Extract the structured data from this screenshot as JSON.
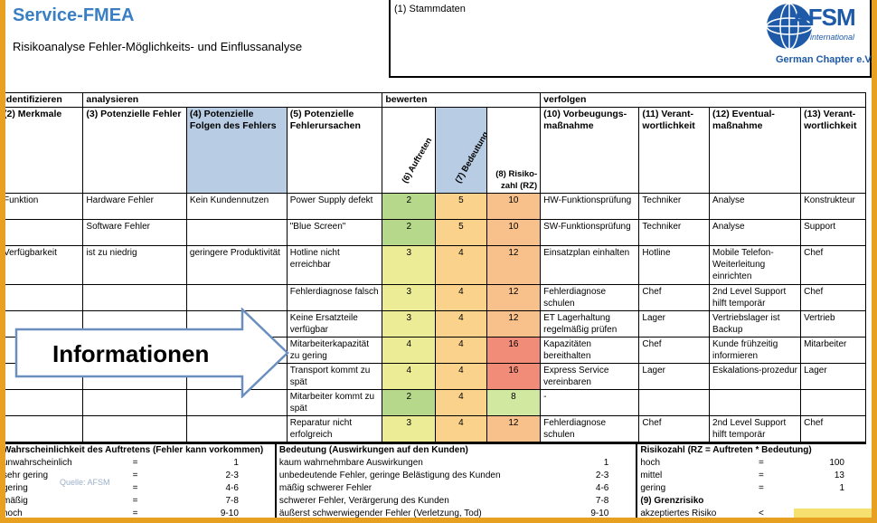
{
  "title": "Service-FMEA",
  "subtitle": "Risikoanalyse Fehler-Möglichkeits- und Einflussanalyse",
  "stammdaten_label": "(1) Stammdaten",
  "logo": {
    "main": "AFSM",
    "sub": "international",
    "chapter": "German Chapter e.V."
  },
  "phases": [
    "identifizieren",
    "analysieren",
    "bewerten",
    "verfolgen"
  ],
  "headers": {
    "merkmale": "(2) Merkmale",
    "fehler": "(3) Potenzielle Fehler",
    "folgen": "(4) Potenzielle Folgen des Fehlers",
    "ursachen": "(5) Potenzielle Fehlerursachen",
    "auftreten": "(6) Auftreten",
    "bedeutung": "(7) Bedeutung",
    "rz": "(8) Risiko-zahl (RZ)",
    "vorbeugung": "(10) Vorbeugungs-maßnahme",
    "verant1": "(11) Verant-wortlichkeit",
    "eventual": "(12) Eventual-maßnahme",
    "verant2": "(13) Verant-wortlichkeit"
  },
  "rows": [
    {
      "merkmal": "Funktion",
      "fehler": "Hardware Fehler",
      "folge": "Kein Kundennutzen",
      "ursache": "Power Supply defekt",
      "a": "2",
      "b": "5",
      "rz": "10",
      "vorb": "HW-Funktionsprüfung",
      "v1": "Techniker",
      "ev": "Analyse",
      "v2": "Konstrukteur"
    },
    {
      "merkmal": "",
      "fehler": "Software Fehler",
      "folge": "",
      "ursache": "\"Blue Screen\"",
      "a": "2",
      "b": "5",
      "rz": "10",
      "vorb": "SW-Funktionsprüfung",
      "v1": "Techniker",
      "ev": "Analyse",
      "v2": "Support"
    },
    {
      "merkmal": "Verfügbarkeit",
      "fehler": "ist zu niedrig",
      "folge": "geringere Produktivität",
      "ursache": "Hotline nicht erreichbar",
      "a": "3",
      "b": "4",
      "rz": "12",
      "vorb": "Einsatzplan einhalten",
      "v1": "Hotline",
      "ev": "Mobile Telefon-Weiterleitung einrichten",
      "v2": "Chef"
    },
    {
      "merkmal": "",
      "fehler": "",
      "folge": "",
      "ursache": "Fehlerdiagnose falsch",
      "a": "3",
      "b": "4",
      "rz": "12",
      "vorb": "Fehlerdiagnose schulen",
      "v1": "Chef",
      "ev": "2nd Level Support hilft temporär",
      "v2": "Chef"
    },
    {
      "merkmal": "",
      "fehler": "",
      "folge": "",
      "ursache": "Keine Ersatzteile verfügbar",
      "a": "3",
      "b": "4",
      "rz": "12",
      "vorb": "ET Lagerhaltung regelmäßig prüfen",
      "v1": "Lager",
      "ev": "Vertriebslager ist Backup",
      "v2": "Vertrieb"
    },
    {
      "merkmal": "",
      "fehler": "",
      "folge": "",
      "ursache": "Mitarbeiterkapazität zu gering",
      "a": "4",
      "b": "4",
      "rz": "16",
      "vorb": "Kapazitäten bereithalten",
      "v1": "Chef",
      "ev": "Kunde frühzeitig informieren",
      "v2": "Mitarbeiter"
    },
    {
      "merkmal": "",
      "fehler": "",
      "folge": "",
      "ursache": "Transport kommt zu spät",
      "a": "4",
      "b": "4",
      "rz": "16",
      "vorb": "Express Service vereinbaren",
      "v1": "Lager",
      "ev": "Eskalations-prozedur",
      "v2": "Lager"
    },
    {
      "merkmal": "",
      "fehler": "",
      "folge": "",
      "ursache": "Mitarbeiter kommt zu spät",
      "a": "2",
      "b": "4",
      "rz": "8",
      "vorb": "-",
      "v1": "",
      "ev": "",
      "v2": ""
    },
    {
      "merkmal": "",
      "fehler": "",
      "folge": "",
      "ursache": "Reparatur nicht erfolgreich",
      "a": "3",
      "b": "4",
      "rz": "12",
      "vorb": "Fehlerdiagnose schulen",
      "v1": "Chef",
      "ev": "2nd Level Support hilft temporär",
      "v2": "Chef"
    }
  ],
  "legend": {
    "auftreten_title": "Wahrscheinlichkeit des Auftretens (Fehler kann vorkommen)",
    "auftreten": [
      {
        "label": "unwahrscheinlich",
        "eq": "=",
        "val": "1"
      },
      {
        "label": "sehr gering",
        "eq": "=",
        "val": "2-3"
      },
      {
        "label": "gering",
        "eq": "=",
        "val": "4-6"
      },
      {
        "label": "mäßig",
        "eq": "=",
        "val": "7-8"
      },
      {
        "label": "hoch",
        "eq": "=",
        "val": "9-10"
      }
    ],
    "bedeutung_title": "Bedeutung (Auswirkungen auf den Kunden)",
    "bedeutung": [
      {
        "label": "kaum wahrnehmbare Auswirkungen",
        "val": "1"
      },
      {
        "label": "unbedeutende Fehler, geringe Belästigung des Kunden",
        "val": "2-3"
      },
      {
        "label": "mäßig schwerer Fehler",
        "val": "4-6"
      },
      {
        "label": "schwerer Fehler, Verärgerung des Kunden",
        "val": "7-8"
      },
      {
        "label": "äußerst schwerwiegender Fehler (Verletzung, Tod)",
        "val": "9-10"
      }
    ],
    "rz_title": "Risikozahl (RZ = Auftreten * Bedeutung)",
    "rz": [
      {
        "label": "hoch",
        "eq": "=",
        "val": "100"
      },
      {
        "label": "mittel",
        "eq": "=",
        "val": "13"
      },
      {
        "label": "gering",
        "eq": "=",
        "val": "1"
      }
    ],
    "grenz_title": "(9) Grenzrisiko",
    "grenz_label": "akzeptiertes Risiko",
    "grenz_eq": "<",
    "grenz_val": "10"
  },
  "overlay_text": "Informationen",
  "watermark": "Quelle: AFSM"
}
